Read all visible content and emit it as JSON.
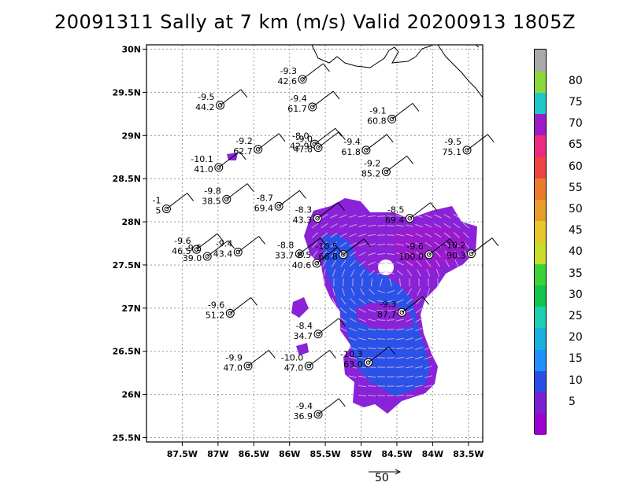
{
  "title": "20091311 Sally at 7 km (m/s) Valid 20200913 1805Z",
  "axes": {
    "x_ticks": [
      "87.5W",
      "87W",
      "86.5W",
      "86W",
      "85.5W",
      "85W",
      "84.5W",
      "84W",
      "83.5W"
    ],
    "y_ticks": [
      "30N",
      "29.5N",
      "29N",
      "28.5N",
      "28N",
      "27.5N",
      "27N",
      "26.5N",
      "26N",
      "25.5N"
    ],
    "lon_range": [
      -88.0,
      -83.3
    ],
    "lat_range": [
      25.45,
      30.05
    ],
    "grid": true
  },
  "colorbar": {
    "labels": [
      "5",
      "10",
      "15",
      "20",
      "25",
      "30",
      "35",
      "40",
      "45",
      "50",
      "55",
      "60",
      "65",
      "70",
      "75",
      "80"
    ],
    "colors": [
      "#9b00cf",
      "#7a1fd6",
      "#2a4fe6",
      "#1e90ff",
      "#19b0e0",
      "#1ccfb0",
      "#11c44c",
      "#3ad43a",
      "#c8dc2c",
      "#e6c82c",
      "#e89c2c",
      "#ec7a2c",
      "#ee4444",
      "#ee2a80",
      "#9c1cc8",
      "#1ec8c8",
      "#8ad83c",
      "#aaaaaa"
    ]
  },
  "vector_scale": {
    "label": "50"
  },
  "drops": [
    {
      "t": "-9.3",
      "w": "42.6",
      "lon": -85.82,
      "lat": 29.65
    },
    {
      "t": "-9.5",
      "w": "44.2",
      "lon": -86.97,
      "lat": 29.35
    },
    {
      "t": "-9.4",
      "w": "61.7",
      "lon": -85.68,
      "lat": 29.33
    },
    {
      "t": "-9.1",
      "w": "60.8",
      "lon": -84.57,
      "lat": 29.19
    },
    {
      "t": "-8.0",
      "w": "42.9",
      "lon": -85.65,
      "lat": 28.9
    },
    {
      "t": "-9.0",
      "w": "47.8",
      "lon": -85.6,
      "lat": 28.86
    },
    {
      "t": "-9.2",
      "w": "62.7",
      "lon": -86.44,
      "lat": 28.84
    },
    {
      "t": "-9.4",
      "w": "61.8",
      "lon": -84.93,
      "lat": 28.83
    },
    {
      "t": "-9.5",
      "w": "75.1",
      "lon": -83.52,
      "lat": 28.83
    },
    {
      "t": "-10.1",
      "w": "41.0",
      "lon": -86.99,
      "lat": 28.63
    },
    {
      "t": "-9.2",
      "w": "85.2",
      "lon": -84.65,
      "lat": 28.58
    },
    {
      "t": "-9.8",
      "w": "38.5",
      "lon": -86.88,
      "lat": 28.26
    },
    {
      "t": "-8.7",
      "w": "69.4",
      "lon": -86.15,
      "lat": 28.18
    },
    {
      "t": "-1",
      "w": "5",
      "lon": -87.72,
      "lat": 28.15
    },
    {
      "t": "-8.3",
      "w": "43.3",
      "lon": -85.61,
      "lat": 28.04
    },
    {
      "t": "-8.5",
      "w": "69.4",
      "lon": -84.32,
      "lat": 28.04
    },
    {
      "t": "-9.6",
      "w": "46.5",
      "lon": -87.3,
      "lat": 27.68
    },
    {
      "t": "-9.5",
      "w": "39.0",
      "lon": -87.15,
      "lat": 27.6
    },
    {
      "t": "-9.4",
      "w": "43.4",
      "lon": -86.72,
      "lat": 27.65
    },
    {
      "t": "-8.8",
      "w": "33.7",
      "lon": -85.86,
      "lat": 27.63
    },
    {
      "t": "-10.5",
      "w": "66.8",
      "lon": -85.25,
      "lat": 27.62
    },
    {
      "t": "-8.5",
      "w": "40.6",
      "lon": -85.62,
      "lat": 27.52
    },
    {
      "t": "-9.6",
      "w": "100.0",
      "lon": -84.05,
      "lat": 27.62
    },
    {
      "t": "-10.2",
      "w": "90.3",
      "lon": -83.46,
      "lat": 27.63
    },
    {
      "t": "-9.6",
      "w": "51.2",
      "lon": -86.83,
      "lat": 26.94
    },
    {
      "t": "-9.3",
      "w": "87.7",
      "lon": -84.43,
      "lat": 26.95
    },
    {
      "t": "-8.4",
      "w": "34.7",
      "lon": -85.6,
      "lat": 26.7
    },
    {
      "t": "-10.3",
      "w": "63.0",
      "lon": -84.9,
      "lat": 26.37
    },
    {
      "t": "-10.0",
      "w": "47.0",
      "lon": -85.73,
      "lat": 26.33
    },
    {
      "t": "-9.9",
      "w": "47.0",
      "lon": -86.58,
      "lat": 26.33
    },
    {
      "t": "-9.4",
      "w": "36.9",
      "lon": -85.6,
      "lat": 25.77
    }
  ]
}
